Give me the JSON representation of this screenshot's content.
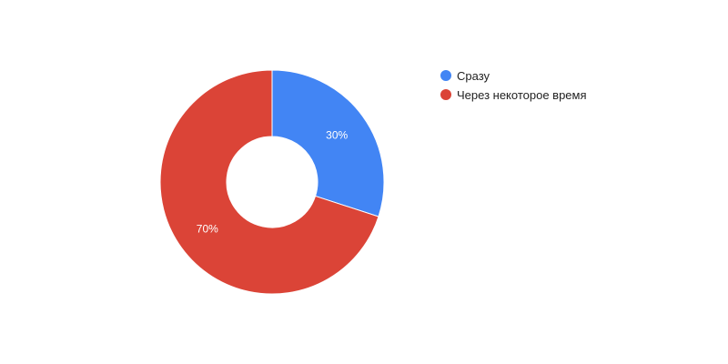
{
  "chart_data": {
    "type": "pie",
    "donut": true,
    "title": "",
    "legend_position": "right",
    "slices": [
      {
        "label": "Сразу",
        "value": 30,
        "display": "30%",
        "color": "#4285f4"
      },
      {
        "label": "Через некоторое время",
        "value": 70,
        "display": "70%",
        "color": "#db4437"
      }
    ]
  }
}
